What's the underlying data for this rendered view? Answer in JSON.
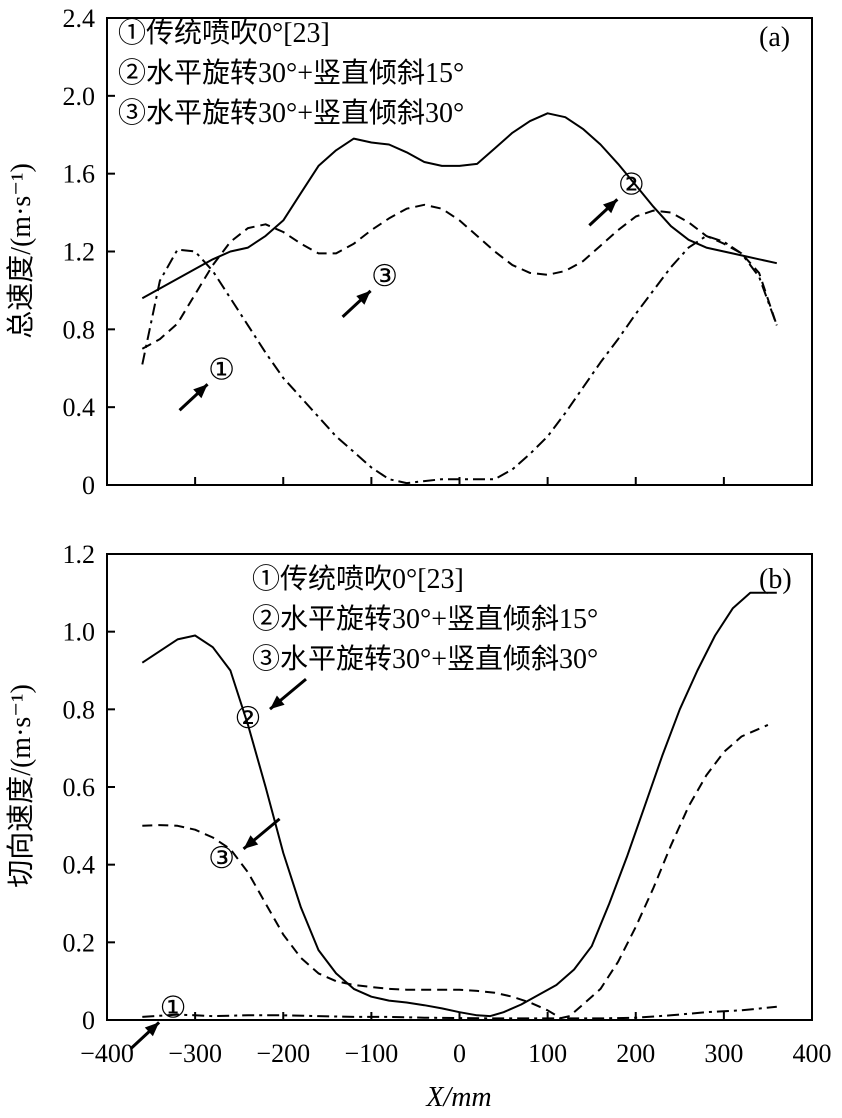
{
  "chart_data": [
    {
      "type": "line",
      "panel_label": "(a)",
      "ylabel": "总速度/(m·s⁻¹)",
      "xlabel": "",
      "xlim": [
        -400,
        400
      ],
      "ylim": [
        0,
        2.4
      ],
      "yticks": [
        "0",
        "0.4",
        "0.8",
        "1.2",
        "1.6",
        "2.0",
        "2.4"
      ],
      "ytick_values": [
        0,
        0.4,
        0.8,
        1.2,
        1.6,
        2.0,
        2.4
      ],
      "xtick_values": [
        -400,
        -300,
        -200,
        -100,
        0,
        100,
        200,
        300,
        400
      ],
      "xticks": [
        "",
        "",
        "",
        "",
        "",
        "",
        "",
        "",
        ""
      ],
      "legend": [
        "①传统喷吹0°[23]",
        "②水平旋转30°+竖直倾斜15°",
        "③水平旋转30°+竖直倾斜30°"
      ],
      "legend_position": "top-left",
      "series": [
        {
          "name": "①传统喷吹0°[23]",
          "style": "dashdot",
          "x": [
            -360,
            -340,
            -320,
            -300,
            -280,
            -260,
            -240,
            -220,
            -200,
            -180,
            -160,
            -140,
            -120,
            -100,
            -80,
            -60,
            -40,
            -20,
            0,
            20,
            40,
            60,
            80,
            100,
            120,
            140,
            160,
            180,
            200,
            220,
            240,
            260,
            280,
            300,
            320,
            340,
            360
          ],
          "y": [
            0.62,
            1.05,
            1.21,
            1.2,
            1.1,
            0.96,
            0.82,
            0.68,
            0.55,
            0.45,
            0.35,
            0.25,
            0.17,
            0.09,
            0.03,
            0.01,
            0.02,
            0.03,
            0.03,
            0.03,
            0.03,
            0.08,
            0.16,
            0.25,
            0.37,
            0.5,
            0.63,
            0.75,
            0.88,
            1.0,
            1.12,
            1.22,
            1.28,
            1.25,
            1.19,
            1.07,
            0.82
          ]
        },
        {
          "name": "②水平旋转30°+竖直倾斜15°",
          "style": "solid",
          "x": [
            -360,
            -340,
            -320,
            -300,
            -280,
            -260,
            -240,
            -220,
            -200,
            -180,
            -160,
            -140,
            -120,
            -100,
            -80,
            -60,
            -40,
            -20,
            0,
            20,
            40,
            60,
            80,
            100,
            120,
            140,
            160,
            180,
            200,
            220,
            240,
            260,
            280,
            300,
            320,
            340,
            360
          ],
          "y": [
            0.96,
            1.01,
            1.06,
            1.11,
            1.16,
            1.2,
            1.22,
            1.28,
            1.36,
            1.5,
            1.64,
            1.72,
            1.78,
            1.76,
            1.75,
            1.71,
            1.66,
            1.64,
            1.64,
            1.65,
            1.73,
            1.81,
            1.87,
            1.91,
            1.89,
            1.83,
            1.75,
            1.65,
            1.54,
            1.43,
            1.33,
            1.26,
            1.22,
            1.2,
            1.18,
            1.16,
            1.14
          ]
        },
        {
          "name": "③水平旋转30°+竖直倾斜30°",
          "style": "dashed",
          "x": [
            -360,
            -340,
            -320,
            -300,
            -280,
            -260,
            -240,
            -220,
            -200,
            -180,
            -160,
            -140,
            -120,
            -100,
            -80,
            -60,
            -40,
            -20,
            0,
            20,
            40,
            60,
            80,
            100,
            120,
            140,
            160,
            180,
            200,
            220,
            240,
            260,
            280,
            300,
            320,
            340,
            360
          ],
          "y": [
            0.7,
            0.75,
            0.83,
            0.98,
            1.13,
            1.25,
            1.32,
            1.34,
            1.3,
            1.24,
            1.19,
            1.19,
            1.24,
            1.31,
            1.37,
            1.42,
            1.44,
            1.42,
            1.36,
            1.28,
            1.2,
            1.13,
            1.09,
            1.08,
            1.1,
            1.15,
            1.23,
            1.31,
            1.38,
            1.41,
            1.4,
            1.35,
            1.28,
            1.24,
            1.19,
            1.09,
            0.82
          ]
        }
      ],
      "annotations": [
        {
          "label": "①",
          "x": -270,
          "y": 0.6,
          "arrow": "up-right"
        },
        {
          "label": "②",
          "x": 195,
          "y": 1.55,
          "arrow": "up-right"
        },
        {
          "label": "③",
          "x": -85,
          "y": 1.08,
          "arrow": "up-right"
        }
      ]
    },
    {
      "type": "line",
      "panel_label": "(b)",
      "ylabel": "切向速度/(m·s⁻¹)",
      "xlabel": "X/mm",
      "xlim": [
        -400,
        400
      ],
      "ylim": [
        0,
        1.2
      ],
      "yticks": [
        "0",
        "0.2",
        "0.4",
        "0.6",
        "0.8",
        "1.0",
        "1.2"
      ],
      "ytick_values": [
        0,
        0.2,
        0.4,
        0.6,
        0.8,
        1.0,
        1.2
      ],
      "xtick_values": [
        -400,
        -300,
        -200,
        -100,
        0,
        100,
        200,
        300,
        400
      ],
      "xticks": [
        "−400",
        "−300",
        "−200",
        "−100",
        "0",
        "100",
        "200",
        "300",
        "400"
      ],
      "legend": [
        "①传统喷吹0°[23]",
        "②水平旋转30°+竖直倾斜15°",
        "③水平旋转30°+竖直倾斜30°"
      ],
      "legend_position": "top-center",
      "series": [
        {
          "name": "①传统喷吹0°[23]",
          "style": "dashdot",
          "x": [
            -360,
            -320,
            -300,
            -280,
            -240,
            -200,
            -160,
            -120,
            -80,
            -40,
            0,
            40,
            80,
            120,
            160,
            200,
            240,
            280,
            320,
            360
          ],
          "y": [
            0.008,
            0.014,
            0.012,
            0.01,
            0.012,
            0.012,
            0.01,
            0.008,
            0.008,
            0.006,
            0.005,
            0.004,
            0.004,
            0.004,
            0.004,
            0.006,
            0.012,
            0.02,
            0.025,
            0.034
          ]
        },
        {
          "name": "②水平旋转30°+竖直倾斜15°",
          "style": "solid",
          "x": [
            -360,
            -340,
            -320,
            -300,
            -280,
            -260,
            -240,
            -220,
            -200,
            -180,
            -160,
            -140,
            -120,
            -100,
            -80,
            -60,
            -40,
            -20,
            0,
            20,
            35,
            50,
            70,
            90,
            110,
            130,
            150,
            170,
            190,
            210,
            230,
            250,
            270,
            290,
            310,
            330,
            345,
            360
          ],
          "y": [
            0.92,
            0.95,
            0.98,
            0.99,
            0.96,
            0.9,
            0.76,
            0.6,
            0.43,
            0.29,
            0.18,
            0.12,
            0.08,
            0.06,
            0.05,
            0.045,
            0.038,
            0.03,
            0.02,
            0.012,
            0.01,
            0.02,
            0.04,
            0.065,
            0.09,
            0.13,
            0.19,
            0.3,
            0.42,
            0.55,
            0.68,
            0.8,
            0.9,
            0.99,
            1.06,
            1.1,
            1.1,
            1.1
          ]
        },
        {
          "name": "③水平旋转30°+竖直倾斜30°",
          "style": "dashed",
          "x": [
            -360,
            -340,
            -320,
            -300,
            -280,
            -260,
            -240,
            -220,
            -200,
            -180,
            -160,
            -140,
            -120,
            -100,
            -80,
            -60,
            -40,
            -20,
            0,
            20,
            40,
            60,
            80,
            100,
            115,
            125,
            140,
            160,
            180,
            200,
            220,
            240,
            260,
            280,
            300,
            320,
            340,
            350
          ],
          "y": [
            0.5,
            0.502,
            0.5,
            0.49,
            0.47,
            0.44,
            0.38,
            0.3,
            0.22,
            0.16,
            0.12,
            0.1,
            0.09,
            0.085,
            0.08,
            0.078,
            0.078,
            0.078,
            0.078,
            0.075,
            0.07,
            0.06,
            0.045,
            0.025,
            0.005,
            0.01,
            0.04,
            0.08,
            0.15,
            0.24,
            0.34,
            0.45,
            0.55,
            0.63,
            0.69,
            0.73,
            0.75,
            0.76
          ]
        }
      ],
      "annotations": [
        {
          "label": "①",
          "x": -325,
          "y": 0.035,
          "arrow": "up-right"
        },
        {
          "label": "②",
          "x": -240,
          "y": 0.78,
          "arrow": "down-left"
        },
        {
          "label": "③",
          "x": -270,
          "y": 0.42,
          "arrow": "down-left"
        }
      ]
    }
  ]
}
